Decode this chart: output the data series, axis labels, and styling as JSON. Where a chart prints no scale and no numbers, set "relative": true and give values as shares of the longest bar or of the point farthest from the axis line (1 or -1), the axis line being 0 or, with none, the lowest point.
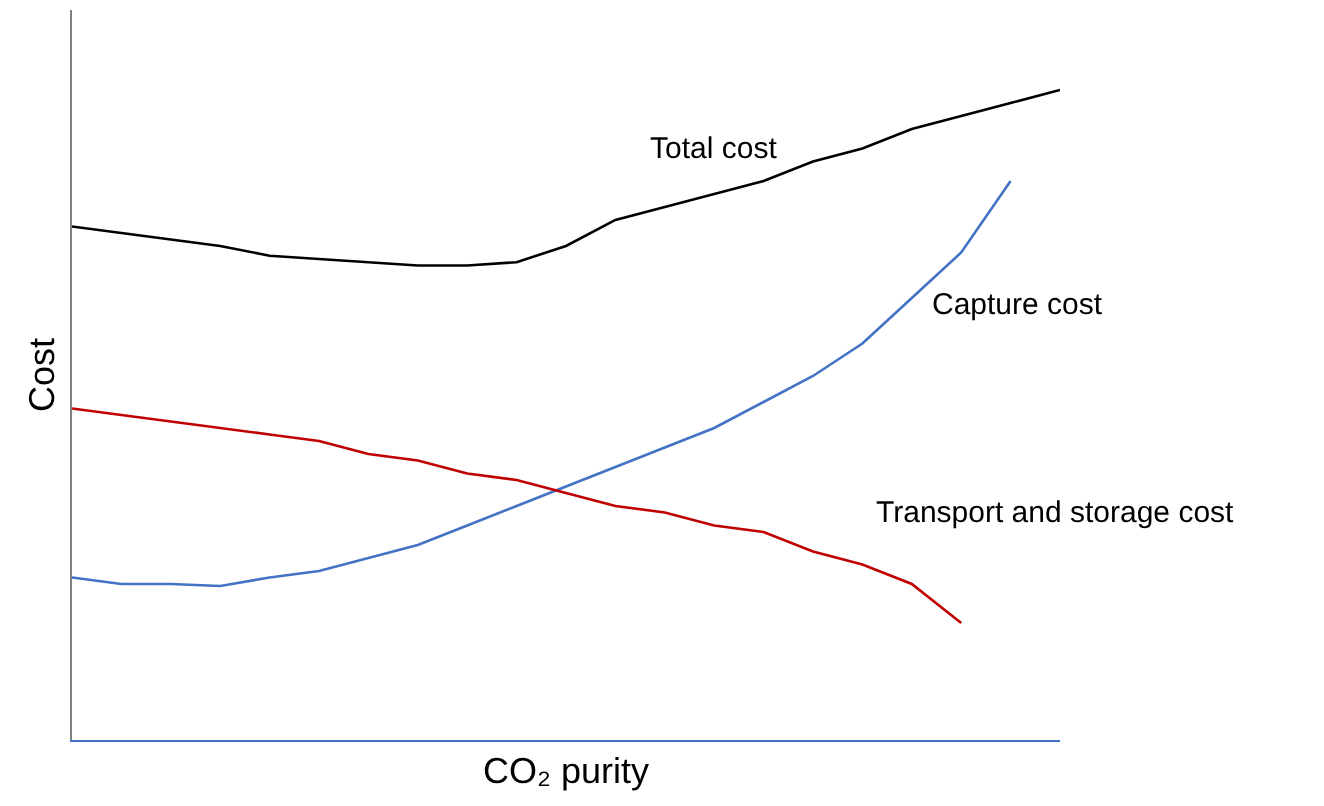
{
  "chart_data": {
    "type": "line",
    "relative": true,
    "xlabel": "CO₂ purity",
    "ylabel": "Cost",
    "legend": false,
    "marker": "none",
    "line_style": "solid",
    "categories": [
      null,
      null,
      null,
      null,
      null,
      null,
      null,
      null,
      null,
      null,
      null,
      null,
      null,
      null,
      null,
      null,
      null,
      null,
      null,
      null,
      null
    ],
    "series": [
      {
        "name": "Total cost",
        "color": "#000000",
        "values": [
          0.79,
          0.78,
          0.77,
          0.76,
          0.745,
          0.74,
          0.735,
          0.73,
          0.73,
          0.735,
          0.76,
          0.8,
          0.82,
          0.84,
          0.86,
          0.89,
          0.91,
          0.94,
          0.96,
          0.98,
          1
        ]
      },
      {
        "name": "Capture cost",
        "color": "#4472c4",
        "values": [
          0.25,
          0.24,
          0.24,
          0.237,
          0.25,
          0.26,
          0.28,
          0.3,
          0.33,
          0.36,
          0.39,
          0.42,
          0.45,
          0.48,
          0.52,
          0.56,
          0.61,
          0.68,
          0.75,
          0.86,
          null
        ]
      },
      {
        "name": "Transport and storage cost",
        "color": "#c00000",
        "values": [
          0.51,
          0.5,
          0.49,
          0.48,
          0.47,
          0.46,
          0.44,
          0.43,
          0.41,
          0.4,
          0.38,
          0.36,
          0.35,
          0.33,
          0.32,
          0.29,
          0.27,
          0.24,
          0.18,
          null,
          null
        ]
      }
    ]
  }
}
